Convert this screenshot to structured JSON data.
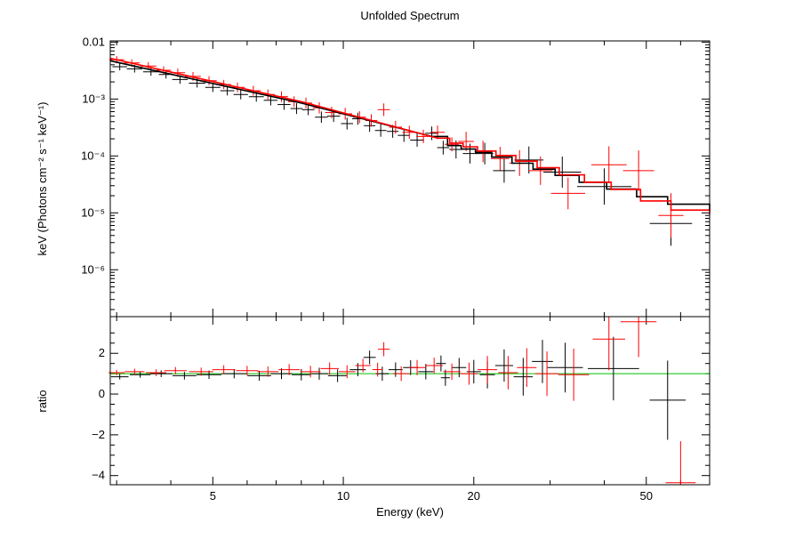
{
  "chart_data": [
    {
      "type": "scatter",
      "panel": "spectrum",
      "title": "Unfolded Spectrum",
      "ylabel": "keV (Photons cm⁻² s⁻¹ keV⁻¹)",
      "xscale": "log",
      "yscale": "log",
      "xlim": [
        2.9,
        70
      ],
      "ylim": [
        1.5e-07,
        0.0105
      ],
      "yticks": [
        {
          "value": 0.01,
          "label": "0.01"
        },
        {
          "value": 0.001,
          "label": "10⁻³"
        },
        {
          "value": 0.0001,
          "label": "10⁻⁴"
        },
        {
          "value": 1e-05,
          "label": "10⁻⁵"
        },
        {
          "value": 1e-06,
          "label": "10⁻⁶"
        }
      ],
      "series": [
        {
          "color": "#000000",
          "kind": "data",
          "points": [
            [
              3.05,
              0.0037
            ],
            [
              3.3,
              0.0034
            ],
            [
              3.6,
              0.003
            ],
            [
              3.9,
              0.0027
            ],
            [
              4.2,
              0.0022
            ],
            [
              4.6,
              0.0019
            ],
            [
              5.0,
              0.0016
            ],
            [
              5.4,
              0.0014
            ],
            [
              5.8,
              0.0012
            ],
            [
              6.3,
              0.0011
            ],
            [
              6.8,
              0.00095
            ],
            [
              7.3,
              0.0008
            ],
            [
              7.8,
              0.00068
            ],
            [
              8.3,
              0.00065
            ],
            [
              8.9,
              0.00048
            ],
            [
              9.5,
              0.0005
            ],
            [
              10.2,
              0.00037
            ],
            [
              10.8,
              0.00045
            ],
            [
              11.5,
              0.00034
            ],
            [
              12.2,
              0.00028
            ],
            [
              13.0,
              0.00027
            ],
            [
              13.8,
              0.00023
            ],
            [
              14.8,
              0.00019
            ],
            [
              16.0,
              0.00025
            ],
            [
              17.0,
              0.00014
            ],
            [
              18.2,
              0.00013
            ],
            [
              19.6,
              0.00011
            ],
            [
              21.2,
              0.00011
            ],
            [
              23.5,
              5.5e-05
            ],
            [
              26.8,
              8.5e-05
            ],
            [
              32.0,
              5.2e-05
            ],
            [
              40.0,
              2.9e-05
            ],
            [
              57.0,
              6.5e-06
            ]
          ]
        },
        {
          "color": "#ff0000",
          "kind": "data",
          "points": [
            [
              3.0,
              0.0049
            ],
            [
              3.25,
              0.0043
            ],
            [
              3.55,
              0.0038
            ],
            [
              3.85,
              0.0032
            ],
            [
              4.15,
              0.0029
            ],
            [
              4.5,
              0.0025
            ],
            [
              4.9,
              0.0021
            ],
            [
              5.3,
              0.0018
            ],
            [
              5.7,
              0.0016
            ],
            [
              6.2,
              0.0014
            ],
            [
              6.7,
              0.0012
            ],
            [
              7.2,
              0.0011
            ],
            [
              7.7,
              0.0009
            ],
            [
              8.2,
              0.00085
            ],
            [
              8.8,
              0.0007
            ],
            [
              9.4,
              0.00058
            ],
            [
              10.1,
              0.00055
            ],
            [
              10.9,
              0.00048
            ],
            [
              11.6,
              0.00042
            ],
            [
              12.4,
              0.00065
            ],
            [
              13.2,
              0.00032
            ],
            [
              14.2,
              0.00026
            ],
            [
              15.3,
              0.00022
            ],
            [
              16.5,
              0.00026
            ],
            [
              17.8,
              0.00016
            ],
            [
              19.2,
              0.00018
            ],
            [
              21.0,
              0.00012
            ],
            [
              23.0,
              9e-05
            ],
            [
              25.5,
              7.5e-05
            ],
            [
              28.5,
              5.5e-05
            ],
            [
              33.0,
              2.2e-05
            ],
            [
              41.0,
              7e-05
            ],
            [
              48.0,
              5.5e-05
            ],
            [
              57.0,
              9e-06
            ]
          ]
        },
        {
          "color": "#000000",
          "kind": "model",
          "points": [
            [
              2.9,
              0.0047
            ],
            [
              8.0,
              0.00085
            ],
            [
              16.0,
              0.00022
            ],
            [
              17.4,
              0.000152
            ],
            [
              18.7,
              0.000132
            ],
            [
              20.2,
              0.000115
            ],
            [
              22.0,
              9.55e-05
            ],
            [
              24.5,
              7.45e-05
            ],
            [
              27.4,
              5.85e-05
            ],
            [
              30.8,
              4.55e-05
            ],
            [
              35.0,
              3.45e-05
            ],
            [
              40.5,
              2.62e-05
            ],
            [
              47.5,
              1.92e-05
            ],
            [
              56.0,
              1.42e-05
            ],
            [
              70.0,
              1.08e-05
            ]
          ]
        },
        {
          "color": "#ff0000",
          "kind": "model",
          "points": [
            [
              2.9,
              0.0052
            ],
            [
              8.0,
              0.0009
            ],
            [
              16.5,
              0.000205
            ],
            [
              17.6,
              0.000168
            ],
            [
              18.9,
              0.000145
            ],
            [
              20.4,
              0.000122
            ],
            [
              22.5,
              0.000102
            ],
            [
              25.0,
              8.1e-05
            ],
            [
              28.0,
              6.2e-05
            ],
            [
              31.5,
              4.65e-05
            ],
            [
              36.0,
              3.45e-05
            ],
            [
              41.5,
              2.58e-05
            ],
            [
              48.5,
              1.62e-05
            ],
            [
              57.0,
              1.12e-05
            ],
            [
              70.0,
              9.4e-06
            ]
          ]
        }
      ]
    },
    {
      "type": "scatter",
      "panel": "ratio",
      "ylabel": "ratio",
      "xlabel": "Energy (keV)",
      "xscale": "log",
      "xlim": [
        2.9,
        70
      ],
      "ylim": [
        -4.45,
        3.8
      ],
      "xticks": [
        {
          "value": 5,
          "label": "5"
        },
        {
          "value": 10,
          "label": "10"
        },
        {
          "value": 20,
          "label": "20"
        },
        {
          "value": 50,
          "label": "50"
        }
      ],
      "yticks": [
        {
          "value": 2,
          "label": "2"
        },
        {
          "value": 0,
          "label": "0"
        },
        {
          "value": -2,
          "label": "−2"
        },
        {
          "value": -4,
          "label": "−4"
        }
      ],
      "reference_line": {
        "value": 1,
        "color": "#00c000"
      },
      "series": [
        {
          "color": "#000000",
          "points": [
            [
              3.05,
              0.85
            ],
            [
              3.4,
              0.95
            ],
            [
              3.8,
              1.0
            ],
            [
              4.3,
              0.9
            ],
            [
              4.9,
              0.95
            ],
            [
              5.6,
              1.0
            ],
            [
              6.4,
              0.9
            ],
            [
              7.2,
              1.0
            ],
            [
              8.0,
              0.95
            ],
            [
              8.8,
              1.0
            ],
            [
              9.7,
              0.9
            ],
            [
              10.8,
              1.2
            ],
            [
              11.5,
              1.8
            ],
            [
              12.3,
              1.0
            ],
            [
              13.2,
              1.2
            ],
            [
              14.3,
              1.3
            ],
            [
              15.5,
              1.1
            ],
            [
              16.8,
              1.5
            ],
            [
              17.2,
              0.8
            ],
            [
              18.5,
              1.3
            ],
            [
              20.0,
              1.1
            ],
            [
              21.5,
              0.95
            ],
            [
              23.5,
              1.4
            ],
            [
              26.0,
              0.85
            ],
            [
              28.8,
              1.6
            ],
            [
              32.5,
              1.3
            ],
            [
              42.0,
              1.25
            ],
            [
              56.0,
              -0.3
            ]
          ]
        },
        {
          "color": "#ff0000",
          "points": [
            [
              3.0,
              1.05
            ],
            [
              3.3,
              1.1
            ],
            [
              3.7,
              1.05
            ],
            [
              4.1,
              1.15
            ],
            [
              4.7,
              1.1
            ],
            [
              5.3,
              1.2
            ],
            [
              6.0,
              1.15
            ],
            [
              6.7,
              1.1
            ],
            [
              7.5,
              1.2
            ],
            [
              8.4,
              1.1
            ],
            [
              9.3,
              1.25
            ],
            [
              10.2,
              1.1
            ],
            [
              11.1,
              1.4
            ],
            [
              12.0,
              1.2
            ],
            [
              12.4,
              2.2
            ],
            [
              13.6,
              1.0
            ],
            [
              14.8,
              1.3
            ],
            [
              16.2,
              1.4
            ],
            [
              17.8,
              1.1
            ],
            [
              19.5,
              1.0
            ],
            [
              21.5,
              1.2
            ],
            [
              24.0,
              1.05
            ],
            [
              26.5,
              1.3
            ],
            [
              29.5,
              1.0
            ],
            [
              34.0,
              0.95
            ],
            [
              41.0,
              2.7
            ],
            [
              48.0,
              3.55
            ],
            [
              60.0,
              -4.35
            ]
          ]
        }
      ]
    }
  ]
}
